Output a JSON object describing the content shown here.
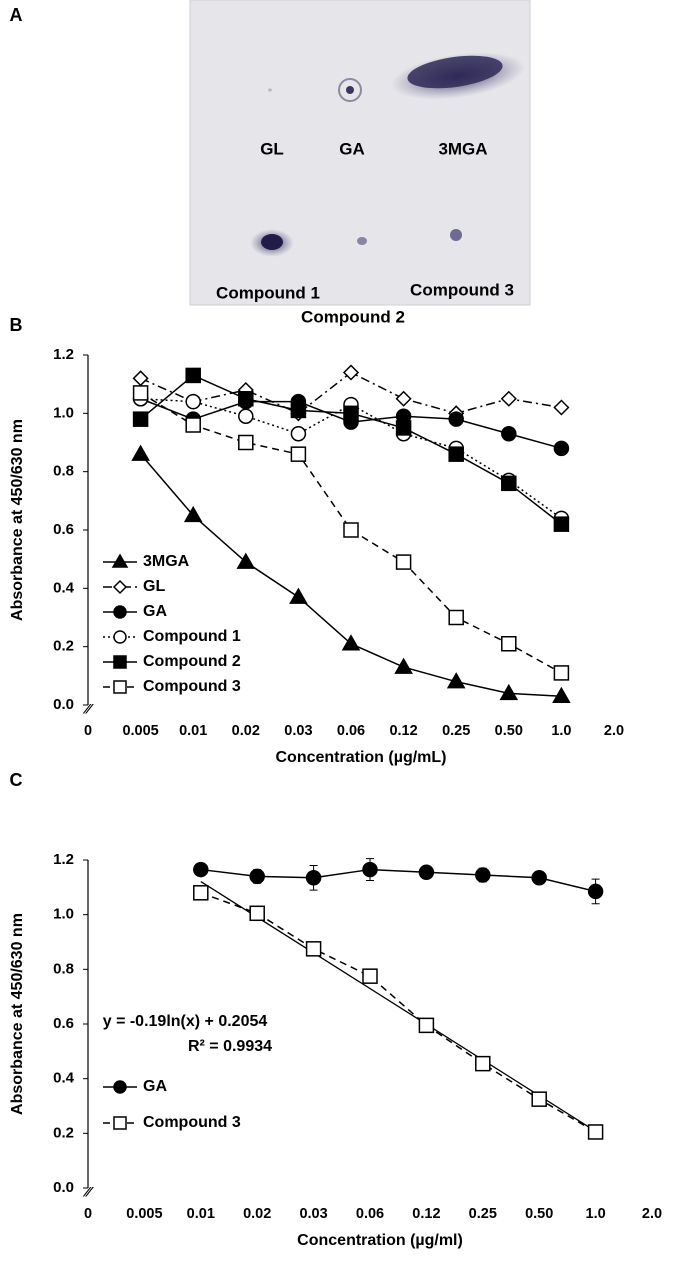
{
  "panel_a": {
    "label": "A",
    "spots": [
      "GL",
      "GA",
      "3MGA",
      "Compound 1",
      "Compound 3",
      "Compound 2"
    ]
  },
  "chart_data": [
    {
      "type": "line",
      "label": "B",
      "x_label": "Concentration (µg/mL)",
      "y_label": "Absorbance at 450/630 nm",
      "categories": [
        "0",
        "0.005",
        "0.01",
        "0.02",
        "0.03",
        "0.06",
        "0.12",
        "0.25",
        "0.50",
        "1.0",
        "2.0"
      ],
      "ylim": [
        0,
        1.2
      ],
      "yticks": [
        {
          "value": 0,
          "label": "0.0"
        },
        0.2,
        0.4,
        0.6,
        0.8,
        {
          "value": 1,
          "label": "1.0"
        },
        1.2
      ],
      "legend": "lower left",
      "series": [
        {
          "name": "3MGA",
          "color": "#000000",
          "marker": "triangle",
          "filled": true,
          "dash": "solid",
          "values": [
            null,
            0.86,
            0.65,
            0.49,
            0.37,
            0.21,
            0.13,
            0.08,
            0.04,
            0.03,
            null
          ]
        },
        {
          "name": "GL",
          "color": "#000000",
          "marker": "diamond",
          "filled": false,
          "dash": "dashdot",
          "values": [
            null,
            1.12,
            1.04,
            1.08,
            1.0,
            1.14,
            1.05,
            1.0,
            1.05,
            1.02,
            null
          ]
        },
        {
          "name": "GA",
          "color": "#000000",
          "marker": "circle",
          "filled": true,
          "dash": "solid",
          "values": [
            null,
            1.05,
            0.98,
            1.04,
            1.04,
            0.97,
            0.99,
            0.98,
            0.93,
            0.88,
            null
          ]
        },
        {
          "name": "Compound 1",
          "color": "#000000",
          "marker": "circle",
          "filled": false,
          "dash": "dotted",
          "values": [
            null,
            1.05,
            1.04,
            0.99,
            0.93,
            1.03,
            0.93,
            0.88,
            0.77,
            0.64,
            null
          ]
        },
        {
          "name": "Compound 2",
          "color": "#000000",
          "marker": "square",
          "filled": true,
          "dash": "solid",
          "values": [
            null,
            0.98,
            1.13,
            1.05,
            1.01,
            1.0,
            0.95,
            0.86,
            0.76,
            0.62,
            null
          ]
        },
        {
          "name": "Compound 3",
          "color": "#000000",
          "marker": "square",
          "filled": false,
          "dash": "dashed",
          "values": [
            null,
            1.07,
            0.96,
            0.9,
            0.86,
            0.6,
            0.49,
            0.3,
            0.21,
            0.11,
            null
          ]
        }
      ]
    },
    {
      "type": "line",
      "label": "C",
      "x_label": "Concentration (µg/ml)",
      "y_label": "Absorbance at 450/630 nm",
      "categories": [
        "0",
        "0.005",
        "0.01",
        "0.02",
        "0.03",
        "0.06",
        "0.12",
        "0.25",
        "0.50",
        "1.0",
        "2.0"
      ],
      "ylim": [
        0,
        1.2
      ],
      "yticks": [
        {
          "value": 0,
          "label": "0.0"
        },
        0.2,
        0.4,
        0.6,
        0.8,
        {
          "value": 1,
          "label": "1.0"
        },
        1.2
      ],
      "legend": "lower left",
      "annotations": [
        "y = -0.19ln(x) + 0.2054",
        "R² = 0.9934"
      ],
      "series": [
        {
          "name": "GA",
          "color": "#000000",
          "marker": "circle",
          "filled": true,
          "dash": "solid",
          "values": [
            null,
            null,
            1.165,
            1.14,
            1.135,
            1.165,
            1.155,
            1.145,
            1.135,
            1.085,
            null
          ],
          "errors": [
            null,
            null,
            0.005,
            0.025,
            0.045,
            0.04,
            0.01,
            0.025,
            0.01,
            0.045,
            null
          ]
        },
        {
          "name": "Compound 3",
          "color": "#000000",
          "marker": "square",
          "filled": false,
          "dash": "dashed",
          "trendline": true,
          "values": [
            null,
            null,
            1.08,
            1.005,
            0.875,
            0.775,
            0.595,
            0.455,
            0.325,
            0.205,
            null
          ]
        }
      ]
    }
  ]
}
